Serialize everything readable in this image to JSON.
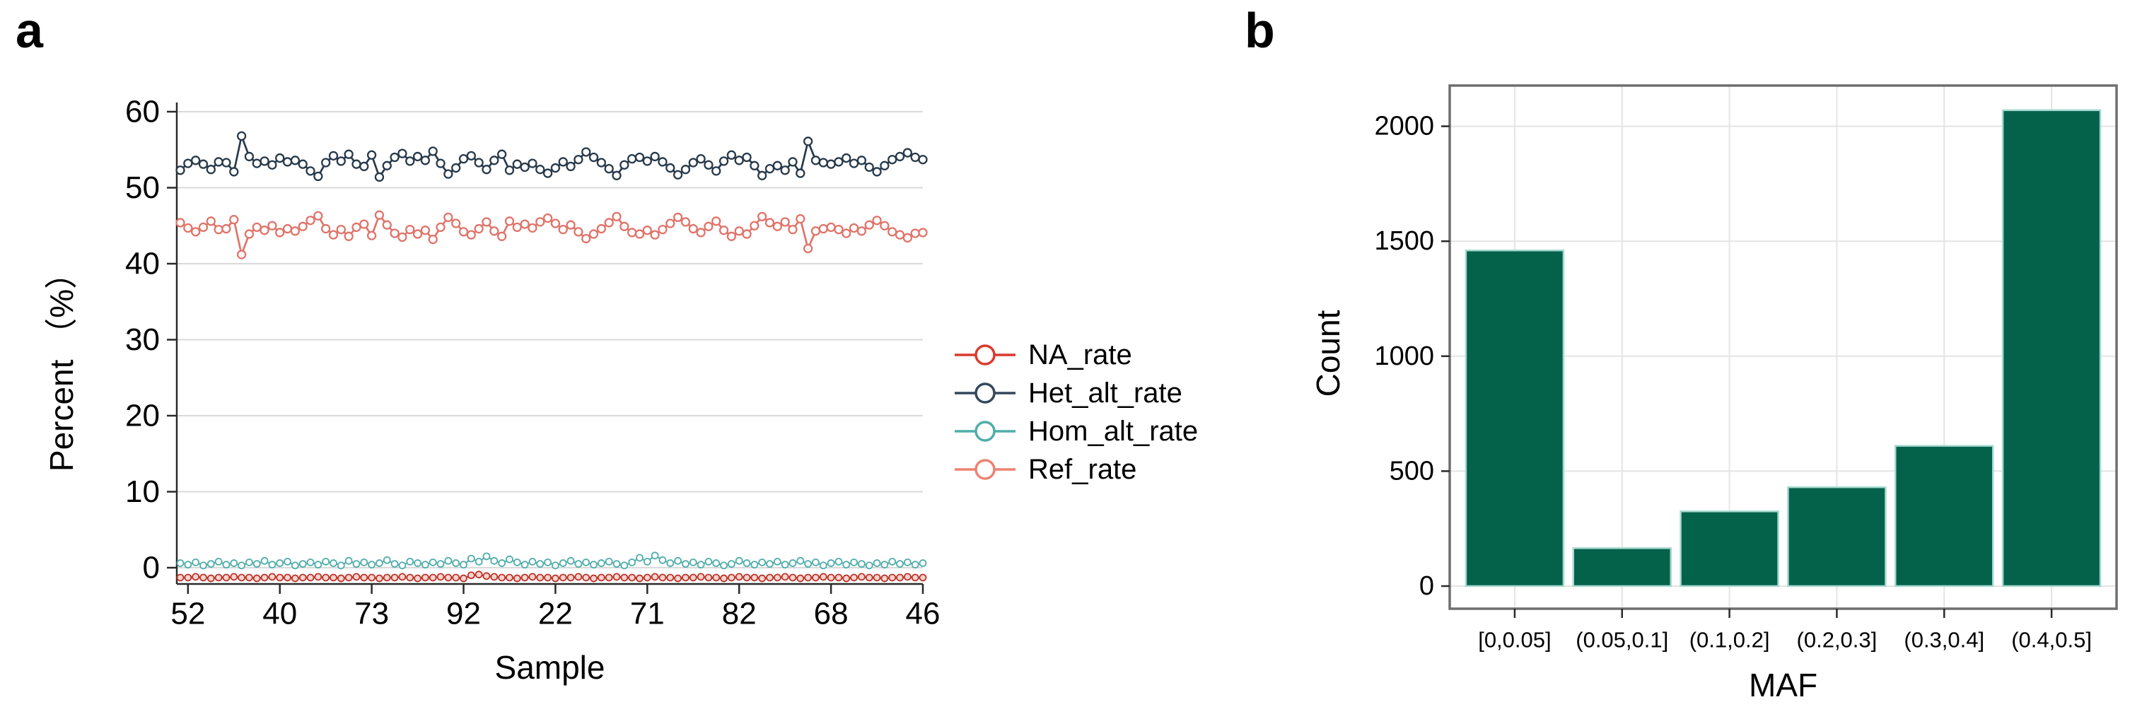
{
  "figure": {
    "panel_a_label": "a",
    "panel_b_label": "b",
    "background": "#ffffff"
  },
  "colors": {
    "axis_line": "#2a2a2a",
    "tick_text": "#000000",
    "grid_a": "#d9d9d9",
    "grid_b": "#e4e4e4",
    "panel_b_border": "#6f6f6f",
    "bar_fill": "#05624a",
    "bar_edge": "#a6d9cf"
  },
  "chart_data": [
    {
      "type": "line",
      "panel": "a",
      "xlabel": "Sample",
      "ylabel": "Percent （%）",
      "x_tick_labels": [
        "52",
        "40",
        "73",
        "92",
        "22",
        "71",
        "82",
        "68",
        "46"
      ],
      "y_ticks": [
        0,
        10,
        20,
        30,
        40,
        50,
        60
      ],
      "ylim": [
        -2.2,
        61
      ],
      "grid": "horizontal-major",
      "legend_position": "right",
      "marker": "open-circle",
      "series": [
        {
          "name": "NA_rate",
          "color": "#d93a2e",
          "line_color": "#bd3428",
          "marker_fill": "#f6d5d0",
          "values": [
            -1.3,
            -1.3,
            -1.2,
            -1.3,
            -1.4,
            -1.3,
            -1.3,
            -1.2,
            -1.3,
            -1.3,
            -1.4,
            -1.3,
            -1.2,
            -1.3,
            -1.3,
            -1.4,
            -1.3,
            -1.3,
            -1.2,
            -1.3,
            -1.3,
            -1.4,
            -1.3,
            -1.2,
            -1.3,
            -1.3,
            -1.4,
            -1.3,
            -1.3,
            -1.2,
            -1.3,
            -1.4,
            -1.3,
            -1.3,
            -1.2,
            -1.3,
            -1.3,
            -1.4,
            -1.0,
            -0.9,
            -1.1,
            -1.2,
            -1.3,
            -1.3,
            -1.4,
            -1.3,
            -1.2,
            -1.3,
            -1.3,
            -1.4,
            -1.3,
            -1.3,
            -1.2,
            -1.3,
            -1.4,
            -1.3,
            -1.3,
            -1.2,
            -1.3,
            -1.3,
            -1.4,
            -1.3,
            -1.2,
            -1.3,
            -1.3,
            -1.4,
            -1.3,
            -1.3,
            -1.2,
            -1.3,
            -1.3,
            -1.4,
            -1.3,
            -1.2,
            -1.3,
            -1.3,
            -1.4,
            -1.3,
            -1.3,
            -1.2,
            -1.3,
            -1.4,
            -1.3,
            -1.3,
            -1.2,
            -1.3,
            -1.3,
            -1.4,
            -1.3,
            -1.2,
            -1.3,
            -1.3,
            -1.4,
            -1.3,
            -1.3,
            -1.2,
            -1.3,
            -1.3
          ]
        },
        {
          "name": "Het_alt_rate",
          "color": "#33485c",
          "line_color": "#27394a",
          "marker_fill": "#ffffff",
          "values": [
            52.3,
            53.2,
            53.6,
            53.1,
            52.4,
            53.4,
            53.3,
            52.1,
            56.8,
            54.1,
            53.2,
            53.5,
            53.0,
            53.9,
            53.4,
            53.6,
            53.1,
            52.2,
            51.5,
            53.3,
            54.2,
            53.5,
            54.4,
            53.1,
            52.8,
            54.3,
            51.4,
            52.9,
            54.0,
            54.5,
            53.5,
            54.1,
            53.6,
            54.8,
            53.2,
            51.8,
            52.6,
            53.8,
            54.2,
            53.3,
            52.4,
            53.6,
            54.4,
            52.3,
            53.1,
            52.7,
            53.2,
            52.4,
            51.9,
            52.6,
            53.4,
            52.8,
            53.7,
            54.7,
            54.0,
            53.3,
            52.5,
            51.6,
            53.0,
            53.8,
            54.0,
            53.5,
            54.1,
            53.4,
            52.6,
            51.7,
            52.4,
            53.3,
            53.8,
            53.0,
            52.2,
            53.5,
            54.3,
            53.6,
            54.0,
            52.9,
            51.6,
            52.5,
            52.9,
            52.3,
            53.4,
            51.9,
            56.1,
            53.6,
            53.3,
            53.1,
            53.4,
            53.9,
            53.2,
            53.6,
            52.7,
            52.1,
            52.9,
            53.7,
            54.1,
            54.6,
            54.0,
            53.7
          ]
        },
        {
          "name": "Hom_alt_rate",
          "color": "#4fadaa",
          "line_color": "#4fadaa",
          "marker_fill": "#ffffff",
          "values": [
            0.6,
            0.4,
            0.7,
            0.3,
            0.5,
            0.8,
            0.4,
            0.6,
            0.3,
            0.7,
            0.5,
            0.9,
            0.4,
            0.6,
            0.8,
            0.3,
            0.5,
            0.7,
            0.4,
            0.8,
            0.6,
            0.3,
            0.9,
            0.5,
            0.7,
            0.4,
            0.6,
            1.0,
            0.5,
            0.3,
            0.8,
            0.6,
            0.4,
            0.7,
            0.5,
            0.9,
            0.6,
            0.4,
            1.2,
            0.8,
            1.5,
            0.9,
            0.6,
            1.1,
            0.7,
            0.4,
            0.8,
            0.5,
            0.7,
            0.3,
            0.6,
            0.9,
            0.5,
            0.7,
            0.4,
            0.6,
            0.8,
            0.5,
            0.3,
            0.7,
            1.3,
            0.8,
            1.6,
            1.0,
            0.6,
            0.9,
            0.5,
            0.7,
            0.4,
            0.8,
            0.6,
            0.3,
            0.5,
            0.9,
            0.6,
            0.4,
            0.7,
            0.5,
            0.8,
            0.4,
            0.6,
            0.9,
            0.5,
            0.7,
            0.3,
            0.6,
            0.8,
            0.4,
            0.7,
            0.5,
            0.3,
            0.6,
            0.4,
            0.8,
            0.5,
            0.7,
            0.4,
            0.6
          ]
        },
        {
          "name": "Ref_rate",
          "color": "#ed8272",
          "line_color": "#e0746a",
          "marker_fill": "#ffffff",
          "values": [
            45.4,
            44.7,
            44.2,
            44.8,
            45.6,
            44.5,
            44.6,
            45.8,
            41.2,
            43.9,
            44.8,
            44.4,
            45.0,
            44.1,
            44.6,
            44.3,
            44.9,
            45.7,
            46.3,
            44.6,
            43.8,
            44.5,
            43.6,
            44.8,
            45.2,
            43.7,
            46.4,
            45.1,
            44.0,
            43.5,
            44.5,
            43.9,
            44.4,
            43.2,
            44.8,
            46.1,
            45.3,
            44.2,
            43.8,
            44.6,
            45.5,
            44.3,
            43.6,
            45.6,
            44.8,
            45.2,
            44.7,
            45.5,
            46.0,
            45.3,
            44.5,
            45.1,
            44.2,
            43.3,
            43.9,
            44.6,
            45.4,
            46.2,
            44.9,
            44.1,
            43.9,
            44.4,
            43.8,
            44.5,
            45.3,
            46.1,
            45.5,
            44.6,
            44.1,
            44.9,
            45.6,
            44.4,
            43.6,
            44.3,
            43.9,
            45.0,
            46.2,
            45.4,
            44.9,
            45.5,
            44.5,
            45.9,
            42.0,
            44.3,
            44.6,
            44.8,
            44.5,
            44.0,
            44.7,
            44.3,
            45.1,
            45.7,
            45.0,
            44.2,
            43.8,
            43.4,
            44.0,
            44.1
          ]
        }
      ]
    },
    {
      "type": "bar",
      "panel": "b",
      "xlabel": "MAF",
      "ylabel": "Count",
      "categories": [
        "[0,0.05]",
        "(0.05,0.1]",
        "(0.1,0.2]",
        "(0.2,0.3]",
        "(0.3,0.4]",
        "(0.4,0.5]"
      ],
      "values": [
        1460,
        165,
        325,
        430,
        610,
        2070
      ],
      "y_ticks": [
        0,
        500,
        1000,
        1500,
        2000
      ],
      "ylim": [
        0,
        2180
      ],
      "grid": "both-major",
      "panel_border": true
    }
  ]
}
